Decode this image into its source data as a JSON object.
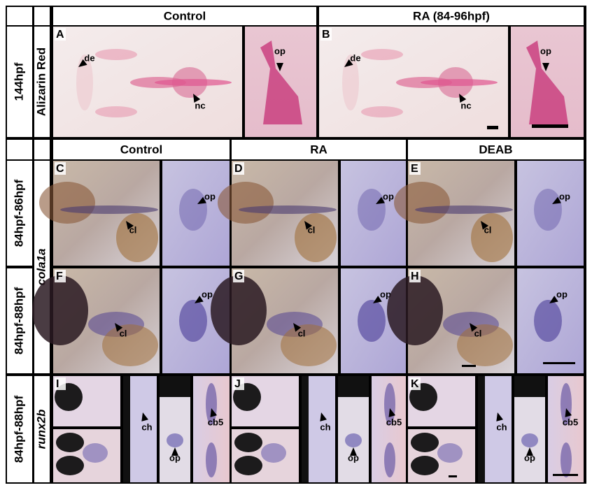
{
  "top": {
    "headers": [
      "Control",
      "RA (84-96hpf)"
    ],
    "stage": "144hpf",
    "stain": "Alizarin Red",
    "panels": [
      {
        "letter": "A",
        "labels": [
          "de",
          "nc",
          "op"
        ]
      },
      {
        "letter": "B",
        "labels": [
          "de",
          "nc",
          "op"
        ]
      }
    ]
  },
  "bottom": {
    "headers": [
      "Control",
      "RA",
      "DEAB"
    ],
    "stains": [
      "cola1a",
      "runx2b"
    ],
    "rows": [
      {
        "stage": "84hpf-86hpf",
        "panels": [
          {
            "letter": "C",
            "labels": [
              "cl",
              "op"
            ]
          },
          {
            "letter": "D",
            "labels": [
              "cl",
              "op"
            ]
          },
          {
            "letter": "E",
            "labels": [
              "cl",
              "op"
            ]
          }
        ]
      },
      {
        "stage": "84hpf-88hpf",
        "panels": [
          {
            "letter": "F",
            "labels": [
              "cl",
              "op"
            ]
          },
          {
            "letter": "G",
            "labels": [
              "cl",
              "op"
            ]
          },
          {
            "letter": "H",
            "labels": [
              "cl",
              "op"
            ]
          }
        ]
      },
      {
        "stage": "84hpf-88hpf",
        "panels": [
          {
            "letter": "I",
            "labels": [
              "ch",
              "op",
              "cb5"
            ]
          },
          {
            "letter": "J",
            "labels": [
              "ch",
              "op",
              "cb5"
            ]
          },
          {
            "letter": "K",
            "labels": [
              "ch",
              "op",
              "cb5"
            ]
          }
        ]
      }
    ]
  }
}
